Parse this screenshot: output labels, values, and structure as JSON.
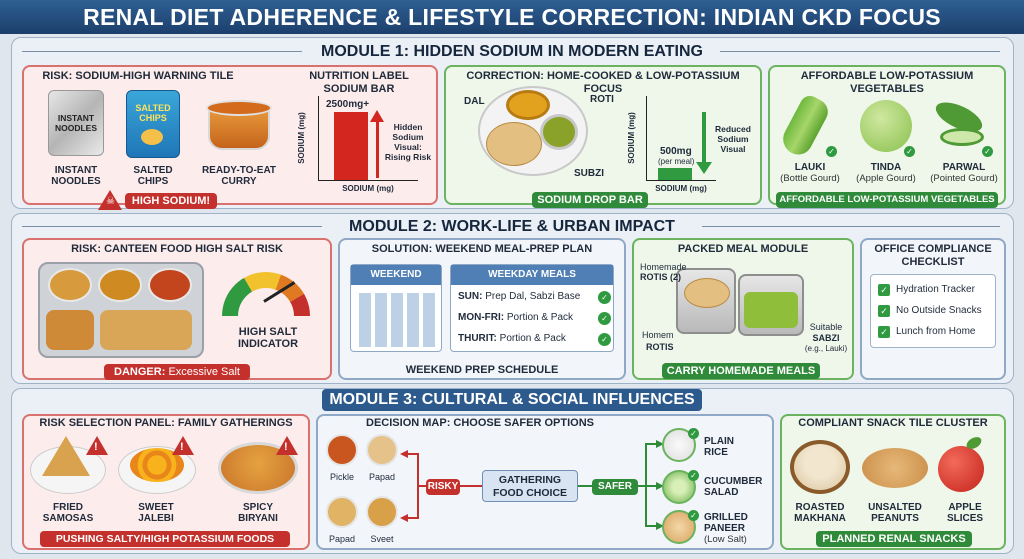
{
  "title": "RENAL DIET ADHERENCE & LIFESTYLE CORRECTION: INDIAN CKD FOCUS",
  "m1": {
    "title": "MODULE 1: HIDDEN SODIUM IN MODERN EATING",
    "risk": {
      "title": "RISK: SODIUM-HIGH WARNING TILE",
      "items": [
        "INSTANT NOODLES",
        "SALTED CHIPS",
        "READY-TO-EAT CURRY"
      ],
      "pack_noodles": "INSTANT NOODLES",
      "pack_chips": "SALTED CHIPS",
      "banner": "HIGH SODIUM!"
    },
    "label": {
      "title": "NUTRITION LABEL SODIUM BAR",
      "value": "2500mg+",
      "ylabel": "SODIUM (mg)",
      "xlabel": "SODIUM (mg)",
      "note": "Hidden Sodium Visual: Rising Risk"
    },
    "correction": {
      "title": "CORRECTION: HOME-COOKED & LOW-POTASSIUM FOCUS",
      "dal": "DAL",
      "roti": "ROTI",
      "subzi": "SUBZI",
      "value": "500mg",
      "value_sub": "(per meal)",
      "ylabel": "SODIUM (mg)",
      "xlabel": "SODIUM (mg)",
      "note": "Reduced Sodium Visual",
      "banner": "SODIUM DROP BAR"
    },
    "veg": {
      "title": "AFFORDABLE LOW-POTASSIUM VEGETABLES",
      "items": [
        {
          "name": "LAUKI",
          "sub": "(Bottle Gourd)"
        },
        {
          "name": "TINDA",
          "sub": "(Apple Gourd)"
        },
        {
          "name": "PARWAL",
          "sub": "(Pointed Gourd)"
        }
      ],
      "banner": "AFFORDABLE LOW-POTASSIUM VEGETABLES"
    }
  },
  "m2": {
    "title": "MODULE 2: WORK-LIFE & URBAN IMPACT",
    "canteen": {
      "title": "RISK: CANTEEN FOOD HIGH SALT RISK",
      "indicator": "HIGH SALT INDICATOR",
      "banner_bold": "DANGER:",
      "banner_rest": "Excessive Salt"
    },
    "prep": {
      "title": "SOLUTION: WEEKEND MEAL-PREP PLAN",
      "weekend": "WEEKEND",
      "weekday": "WEEKDAY MEALS",
      "rows": [
        {
          "day": "SUN:",
          "text": "Prep Dal, Sabzi Base"
        },
        {
          "day": "MON-FRI:",
          "text": "Portion & Pack"
        },
        {
          "day": "THURIT:",
          "text": "Portion & Pack"
        }
      ],
      "footer": "WEEKEND PREP SCHEDULE"
    },
    "packed": {
      "title": "PACKED MEAL MODULE",
      "l1a": "Homemade",
      "l1b": "ROTIS (2)",
      "l2a": "Homem",
      "l2b": "ROTIS",
      "r1a": "Suitable",
      "r1b": "SABZI",
      "r1c": "(e.g., Lauki)",
      "banner": "CARRY HOMEMADE MEALS"
    },
    "office": {
      "title": "OFFICE COMPLIANCE CHECKLIST",
      "items": [
        "Hydration Tracker",
        "No Outside Snacks",
        "Lunch from Home"
      ]
    }
  },
  "m3": {
    "title": "MODULE 3: CULTURAL & SOCIAL INFLUENCES",
    "family": {
      "title": "RISK SELECTION PANEL: FAMILY GATHERINGS",
      "items": [
        {
          "a": "FRIED",
          "b": "SAMOSAS"
        },
        {
          "a": "SWEET",
          "b": "JALEBI"
        },
        {
          "a": "SPICY",
          "b": "BIRYANI"
        }
      ],
      "banner": "PUSHING SALTY/HIGH POTASSIUM FOODS"
    },
    "decision": {
      "title": "DECISION MAP: CHOOSE SAFER OPTIONS",
      "risky_items": [
        "Pickle",
        "Papad",
        "Papad",
        "Sveet"
      ],
      "risky": "RISKY",
      "center": "GATHERING FOOD CHOICE",
      "safer": "SAFER",
      "safe": [
        {
          "a": "PLAIN",
          "b": "RICE",
          "c": ""
        },
        {
          "a": "CUCUMBER",
          "b": "SALAD",
          "c": ""
        },
        {
          "a": "GRILLED",
          "b": "PANEER",
          "c": "(Low Salt)"
        }
      ]
    },
    "snack": {
      "title": "COMPLIANT SNACK TILE CLUSTER",
      "items": [
        {
          "a": "ROASTED",
          "b": "MAKHANA"
        },
        {
          "a": "UNSALTED",
          "b": "PEANUTS"
        },
        {
          "a": "APPLE",
          "b": "SLICES"
        }
      ],
      "banner": "PLANNED RENAL SNACKS"
    }
  },
  "colors": {
    "danger": "#c4302b",
    "safe": "#2f8a3a",
    "header": "#2e5f93"
  }
}
